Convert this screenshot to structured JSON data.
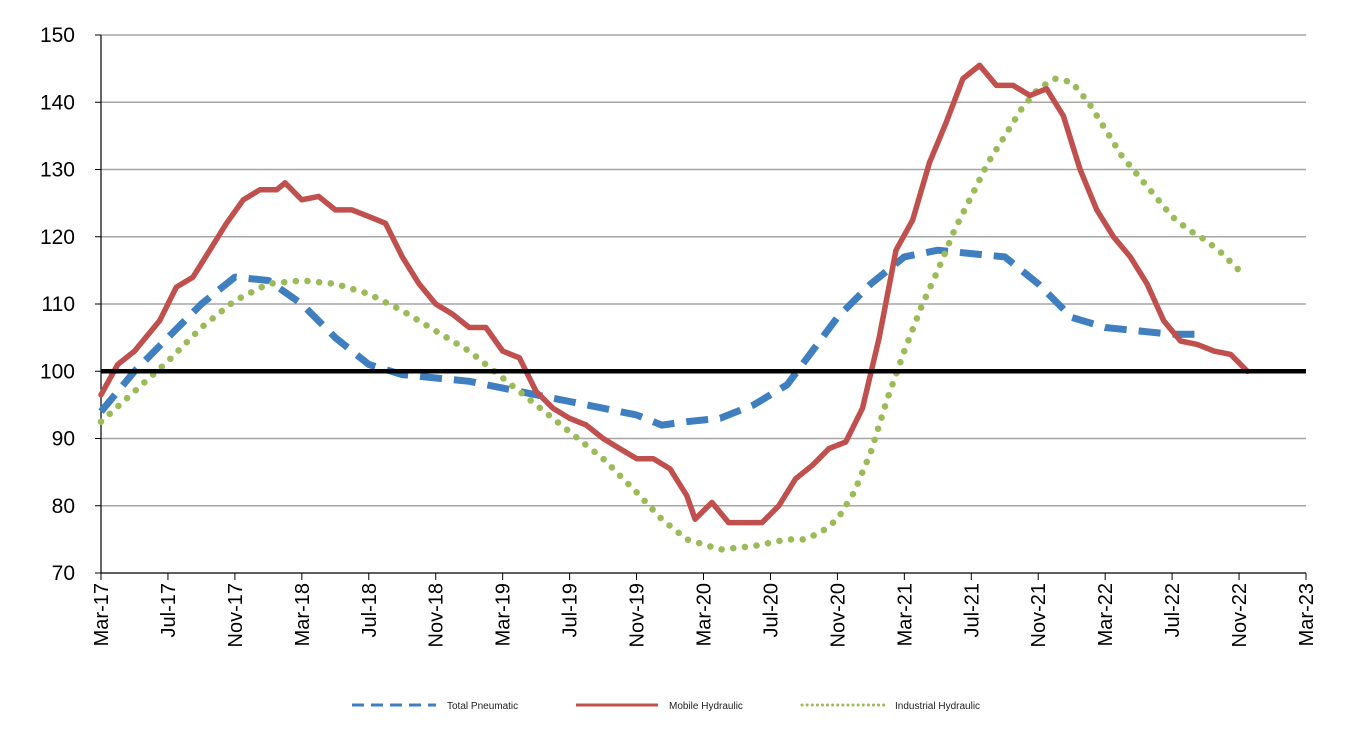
{
  "chart_data": {
    "type": "line",
    "title": "",
    "xlabel": "",
    "ylabel": "",
    "ylim": [
      70,
      150
    ],
    "yticks": [
      70,
      80,
      90,
      100,
      110,
      120,
      130,
      140,
      150
    ],
    "reference_line": 100,
    "grid": "horizontal",
    "legend_position": "bottom",
    "x_tick_labels": [
      "Mar-17",
      "Jul-17",
      "Nov-17",
      "Mar-18",
      "Jul-18",
      "Nov-18",
      "Mar-19",
      "Jul-19",
      "Nov-19",
      "Mar-20",
      "Jul-20",
      "Nov-20",
      "Mar-21",
      "Jul-21",
      "Nov-21",
      "Mar-22",
      "Jul-22",
      "Nov-22",
      "Mar-23"
    ],
    "months_count": 73,
    "series": [
      {
        "name": "Total Pneumatic",
        "color": "#3f7fbf",
        "style": "dashed",
        "points": [
          [
            0,
            94
          ],
          [
            4,
            100
          ],
          [
            8,
            105
          ],
          [
            12,
            110
          ],
          [
            16,
            114
          ],
          [
            20,
            113.5
          ],
          [
            24,
            110
          ],
          [
            28,
            105
          ],
          [
            32,
            101
          ],
          [
            36,
            99.5
          ],
          [
            40,
            99
          ],
          [
            44,
            98.5
          ],
          [
            48,
            97.5
          ],
          [
            52,
            96.5
          ],
          [
            56,
            95.5
          ],
          [
            60,
            94.5
          ],
          [
            64,
            93.5
          ],
          [
            67,
            92
          ],
          [
            70,
            92.5
          ],
          [
            74,
            93
          ],
          [
            78,
            95
          ],
          [
            82,
            98
          ],
          [
            85,
            103
          ],
          [
            88,
            108
          ],
          [
            92,
            113
          ],
          [
            96,
            117
          ],
          [
            100,
            118
          ],
          [
            104,
            117.5
          ],
          [
            108,
            117
          ],
          [
            112,
            113
          ],
          [
            116,
            108
          ],
          [
            120,
            106.5
          ],
          [
            124,
            106
          ],
          [
            128,
            105.5
          ],
          [
            132,
            105.5
          ]
        ]
      },
      {
        "name": "Mobile Hydraulic",
        "color": "#c0504d",
        "style": "solid",
        "points": [
          [
            0,
            96.5
          ],
          [
            2,
            101
          ],
          [
            4,
            103
          ],
          [
            6,
            106
          ],
          [
            7,
            107.5
          ],
          [
            9,
            112.5
          ],
          [
            11,
            114
          ],
          [
            13,
            118
          ],
          [
            15,
            122
          ],
          [
            17,
            125.5
          ],
          [
            19,
            127
          ],
          [
            21,
            127
          ],
          [
            22,
            128
          ],
          [
            24,
            125.5
          ],
          [
            26,
            126
          ],
          [
            28,
            124
          ],
          [
            30,
            124
          ],
          [
            32,
            123
          ],
          [
            34,
            122
          ],
          [
            36,
            117
          ],
          [
            38,
            113
          ],
          [
            40,
            110
          ],
          [
            42,
            108.5
          ],
          [
            44,
            106.5
          ],
          [
            46,
            106.5
          ],
          [
            48,
            103
          ],
          [
            50,
            102
          ],
          [
            52,
            97
          ],
          [
            54,
            94.5
          ],
          [
            56,
            93
          ],
          [
            58,
            92
          ],
          [
            60,
            90
          ],
          [
            62,
            88.5
          ],
          [
            64,
            87
          ],
          [
            66,
            87
          ],
          [
            68,
            85.5
          ],
          [
            70,
            81.5
          ],
          [
            71,
            78
          ],
          [
            73,
            80.5
          ],
          [
            75,
            77.5
          ],
          [
            77,
            77.5
          ],
          [
            79,
            77.5
          ],
          [
            81,
            80
          ],
          [
            83,
            84
          ],
          [
            85,
            86
          ],
          [
            87,
            88.5
          ],
          [
            89,
            89.5
          ],
          [
            91,
            94.5
          ],
          [
            93,
            105
          ],
          [
            95,
            118
          ],
          [
            97,
            122.5
          ],
          [
            99,
            131
          ],
          [
            101,
            137
          ],
          [
            103,
            143.5
          ],
          [
            105,
            145.5
          ],
          [
            107,
            142.5
          ],
          [
            109,
            142.5
          ],
          [
            111,
            141
          ],
          [
            113,
            142
          ],
          [
            115,
            138
          ],
          [
            117,
            130
          ],
          [
            119,
            124
          ],
          [
            121,
            120
          ],
          [
            123,
            117
          ],
          [
            125,
            113
          ],
          [
            127,
            107.5
          ],
          [
            129,
            104.5
          ],
          [
            131,
            104
          ],
          [
            133,
            103
          ],
          [
            135,
            102.5
          ],
          [
            137,
            100
          ]
        ]
      },
      {
        "name": "Industrial Hydraulic",
        "color": "#9bbb59",
        "style": "dotted",
        "points": [
          [
            0,
            92.5
          ],
          [
            4,
            97
          ],
          [
            8,
            101.5
          ],
          [
            12,
            106.5
          ],
          [
            16,
            110.5
          ],
          [
            20,
            113
          ],
          [
            24,
            113.5
          ],
          [
            28,
            113
          ],
          [
            32,
            111.5
          ],
          [
            36,
            109
          ],
          [
            40,
            106
          ],
          [
            44,
            103
          ],
          [
            48,
            99
          ],
          [
            52,
            95
          ],
          [
            56,
            91
          ],
          [
            60,
            87
          ],
          [
            64,
            82
          ],
          [
            67,
            78
          ],
          [
            70,
            75
          ],
          [
            74,
            73.5
          ],
          [
            78,
            74
          ],
          [
            82,
            75
          ],
          [
            84,
            75
          ],
          [
            86,
            76
          ],
          [
            88,
            78
          ],
          [
            90,
            82
          ],
          [
            92,
            88
          ],
          [
            94,
            96
          ],
          [
            96,
            103
          ],
          [
            98,
            109.5
          ],
          [
            100,
            115
          ],
          [
            102,
            121
          ],
          [
            104,
            126
          ],
          [
            106,
            131
          ],
          [
            108,
            135
          ],
          [
            110,
            139
          ],
          [
            112,
            142
          ],
          [
            114,
            143.5
          ],
          [
            116,
            143
          ],
          [
            118,
            140
          ],
          [
            120,
            136
          ],
          [
            122,
            132
          ],
          [
            124,
            129
          ],
          [
            126,
            126
          ],
          [
            128,
            123
          ],
          [
            130,
            121
          ],
          [
            132,
            119.5
          ],
          [
            134,
            117.5
          ],
          [
            136,
            115
          ],
          [
            137,
            115
          ]
        ]
      }
    ]
  }
}
